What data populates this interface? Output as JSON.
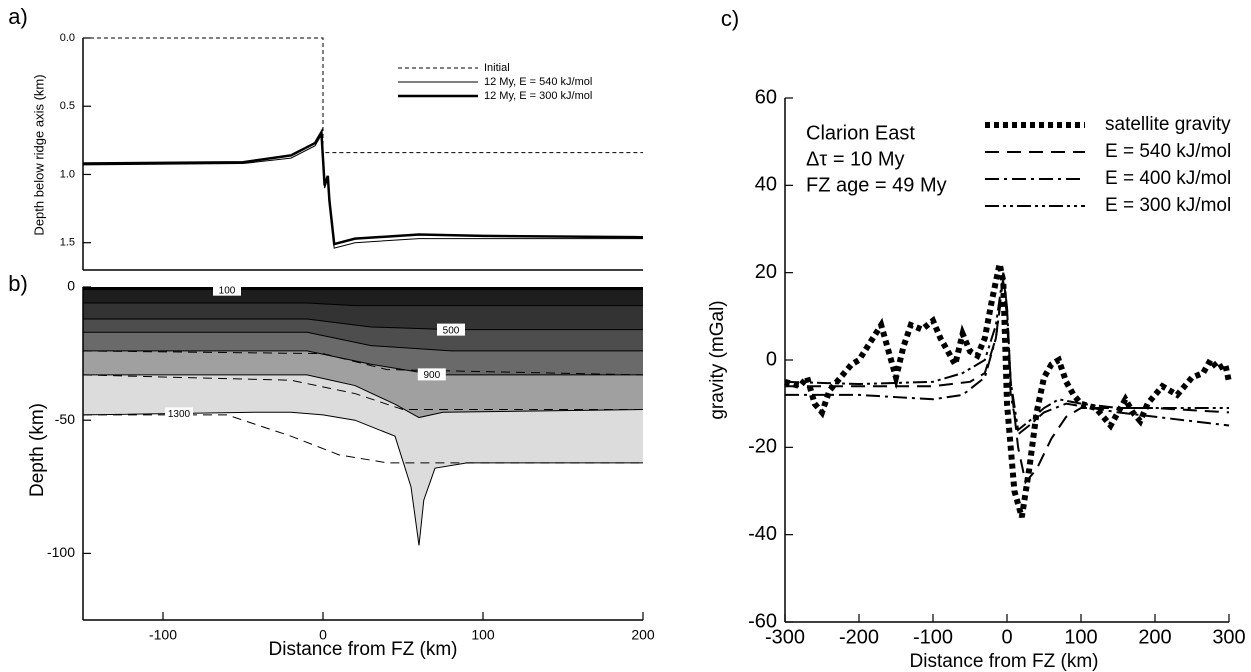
{
  "chart_data": [
    {
      "type": "line",
      "panel_label": "a)",
      "y_label": "Depth below ridge axis (km)",
      "xlim": [
        -150,
        200
      ],
      "ylim": [
        0,
        1.7
      ],
      "y_inverted": true,
      "yticks": [
        {
          "value": 0,
          "label": "0.0"
        },
        0.5,
        {
          "value": 1,
          "label": "1.0"
        },
        1.5
      ],
      "series": [
        {
          "name": "Initial",
          "color": "#000",
          "width": 1,
          "dash": "4,3",
          "x": [
            -150,
            0,
            0,
            2,
            200
          ],
          "values": [
            0,
            0,
            0.84,
            0.84,
            0.84
          ]
        },
        {
          "name": "12 My, E = 540 kJ/mol",
          "color": "#000",
          "width": 1,
          "dash": "none",
          "x": [
            -150,
            -50,
            -20,
            -5,
            -1,
            1,
            3,
            4,
            7,
            20,
            60,
            100,
            200
          ],
          "values": [
            0.93,
            0.92,
            0.88,
            0.79,
            0.71,
            1.1,
            1.03,
            1.22,
            1.54,
            1.5,
            1.47,
            1.47,
            1.47
          ]
        },
        {
          "name": "12 My, E = 300 kJ/mol",
          "color": "#000",
          "width": 2.5,
          "dash": "none",
          "x": [
            -150,
            -50,
            -20,
            -5,
            -1,
            1,
            3,
            4,
            7,
            20,
            60,
            100,
            200
          ],
          "values": [
            0.92,
            0.91,
            0.86,
            0.77,
            0.69,
            1.08,
            1.01,
            1.19,
            1.51,
            1.47,
            1.44,
            1.45,
            1.46
          ]
        }
      ]
    },
    {
      "type": "contour",
      "panel_label": "b)",
      "x_label": "Distance from FZ (km)",
      "y_label": "Depth (km)",
      "xlim": [
        -150,
        200
      ],
      "ylim": [
        -125,
        0
      ],
      "xticks": [
        -100,
        0,
        100,
        200
      ],
      "yticks": [
        0,
        -50,
        -100
      ],
      "top_fill": "#000",
      "contours": [
        {
          "label": "100",
          "fill": "#1e1e1e",
          "x": [
            -150,
            200
          ],
          "depth": [
            -1,
            -1
          ]
        },
        {
          "fill": "#333333",
          "x": [
            -150,
            -10,
            20,
            200
          ],
          "depth": [
            -6,
            -6,
            -7,
            -7
          ]
        },
        {
          "label": "500",
          "fill": "#4d4d4d",
          "x": [
            -150,
            -10,
            30,
            80,
            200
          ],
          "depth": [
            -12,
            -12,
            -15,
            -16,
            -16
          ]
        },
        {
          "fill": "#6a6a6a",
          "x": [
            -150,
            -10,
            30,
            80,
            200
          ],
          "depth": [
            -17,
            -17,
            -22,
            -24,
            -24
          ]
        },
        {
          "label": "900",
          "fill": "#a0a0a0",
          "x": [
            -150,
            -10,
            30,
            70,
            200
          ],
          "depth": [
            -24,
            -24,
            -29,
            -33,
            -33
          ]
        },
        {
          "fill": "#dcdcdc",
          "x": [
            -150,
            -10,
            20,
            45,
            60,
            75,
            200
          ],
          "depth": [
            -33,
            -33,
            -37,
            -44,
            -49,
            -47,
            -46
          ]
        },
        {
          "label": "1300",
          "fill": "#ffffff",
          "x": [
            -150,
            -40,
            -20,
            0,
            20,
            45,
            55,
            60,
            63,
            70,
            90,
            200
          ],
          "depth": [
            -48,
            -47,
            -47,
            -48,
            -50,
            -56,
            -75,
            -97,
            -80,
            -68,
            -66,
            -66
          ]
        }
      ],
      "initial_contours": [
        {
          "x": [
            -150,
            0,
            40,
            200
          ],
          "depth": [
            -24,
            -25,
            -31,
            -33
          ]
        },
        {
          "x": [
            -150,
            -20,
            20,
            50,
            200
          ],
          "depth": [
            -33,
            -35,
            -40,
            -46,
            -46
          ]
        },
        {
          "x": [
            -150,
            -60,
            -20,
            10,
            40,
            200
          ],
          "depth": [
            -48,
            -48,
            -56,
            -63,
            -66,
            -66
          ]
        }
      ]
    },
    {
      "type": "line",
      "panel_label": "c)",
      "x_label": "Distance from FZ (km)",
      "y_label": "gravity (mGal)",
      "xlim": [
        -300,
        300
      ],
      "ylim": [
        -60,
        60
      ],
      "xticks": [
        -300,
        -200,
        -100,
        0,
        100,
        200,
        300
      ],
      "yticks": [
        -60,
        -40,
        -20,
        0,
        20,
        40,
        60
      ],
      "annotations": [
        "Clarion East",
        "Δτ = 10 My",
        "FZ age = 49 My"
      ],
      "series": [
        {
          "name": "satellite gravity",
          "color": "#000",
          "width": 6,
          "dash": "5,4",
          "x": [
            -300,
            -280,
            -270,
            -260,
            -250,
            -240,
            -225,
            -210,
            -200,
            -185,
            -170,
            -160,
            -150,
            -140,
            -130,
            -115,
            -100,
            -90,
            -80,
            -70,
            -60,
            -50,
            -40,
            -30,
            -20,
            -10,
            -5,
            0,
            10,
            20,
            30,
            40,
            50,
            60,
            70,
            80,
            90,
            100,
            120,
            140,
            160,
            170,
            180,
            190,
            210,
            230,
            250,
            265,
            275,
            285,
            295,
            300
          ],
          "values": [
            -5,
            -6,
            -4,
            -10,
            -12,
            -7,
            -4,
            -1,
            0,
            4,
            8,
            2,
            -4,
            3,
            8,
            7,
            9,
            5,
            2,
            -1,
            6,
            2,
            1,
            5,
            14,
            22,
            18,
            -10,
            -30,
            -36,
            -25,
            -12,
            -4,
            -1,
            0,
            -5,
            -8,
            -10,
            -11,
            -15,
            -9,
            -12,
            -14,
            -10,
            -6,
            -8,
            -4,
            -3,
            0,
            -2,
            -1,
            -5
          ]
        },
        {
          "name": "E = 540 kJ/mol",
          "color": "#000",
          "width": 2,
          "dash": "14,8",
          "x": [
            -300,
            -200,
            -100,
            -50,
            -30,
            -15,
            -5,
            0,
            5,
            15,
            25,
            40,
            60,
            80,
            100,
            150,
            200,
            300
          ],
          "values": [
            -6,
            -6,
            -6,
            -5,
            -3,
            5,
            19,
            12,
            -5,
            -20,
            -28,
            -25,
            -18,
            -13,
            -11,
            -11,
            -11,
            -12
          ]
        },
        {
          "name": "E = 400 kJ/mol",
          "color": "#000",
          "width": 2,
          "dash": "14,5,3,5",
          "x": [
            -300,
            -200,
            -100,
            -60,
            -30,
            -15,
            -5,
            0,
            5,
            15,
            30,
            50,
            80,
            150,
            200,
            300
          ],
          "values": [
            -8,
            -8,
            -9,
            -8,
            -4,
            5,
            18,
            10,
            -8,
            -17,
            -15,
            -12,
            -10,
            -12,
            -13,
            -15
          ]
        },
        {
          "name": "E = 300 kJ/mol",
          "color": "#000",
          "width": 2,
          "dash": "14,4,3,4,3,4",
          "x": [
            -300,
            -200,
            -100,
            -60,
            -30,
            -15,
            -5,
            0,
            5,
            15,
            30,
            50,
            70,
            100,
            150,
            200,
            300
          ],
          "values": [
            -5,
            -5.5,
            -5,
            -3,
            0,
            8,
            20,
            12,
            -5,
            -16,
            -14,
            -11,
            -9,
            -10,
            -11,
            -11,
            -11
          ]
        }
      ]
    }
  ]
}
